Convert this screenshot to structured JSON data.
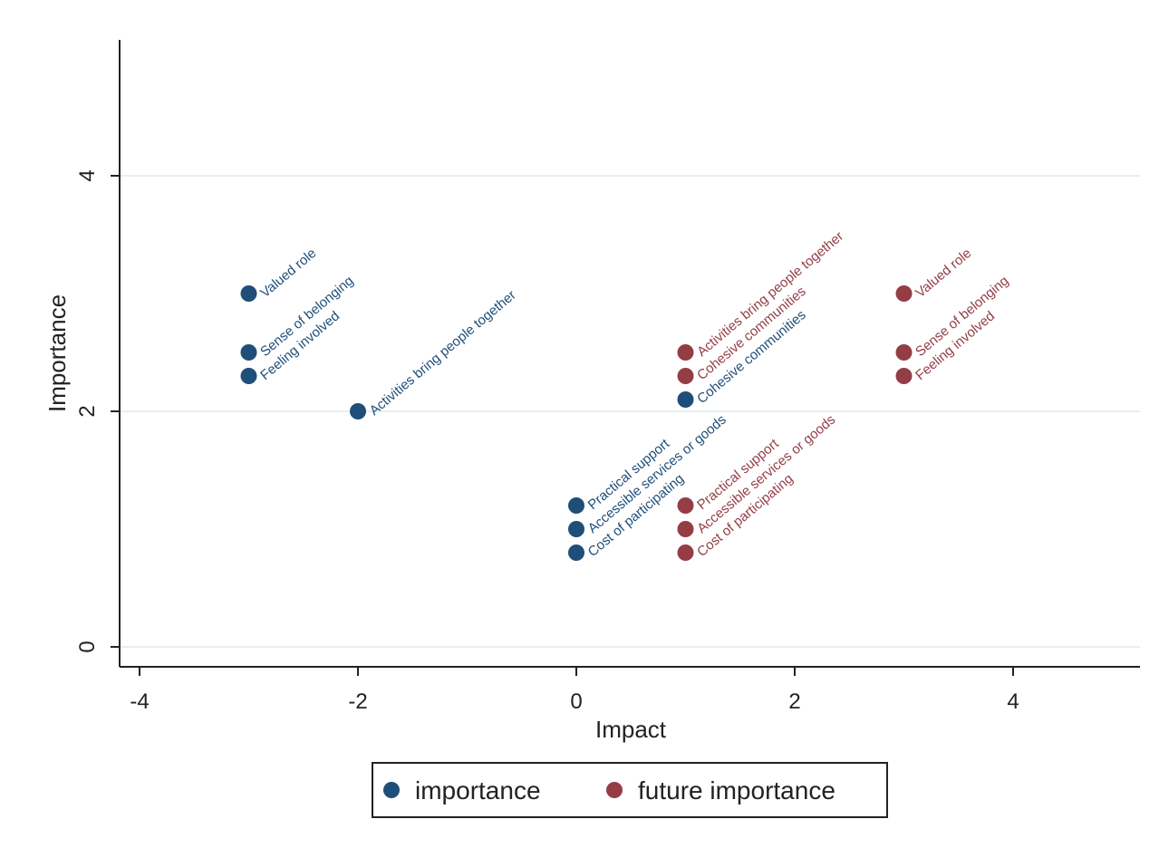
{
  "chart_data": {
    "type": "scatter",
    "xlabel": "Impact",
    "ylabel": "Importance",
    "xlim": [
      -4.1,
      5.2
    ],
    "ylim": [
      -0.2,
      5.2
    ],
    "xticks": [
      -4,
      -2,
      0,
      2,
      4
    ],
    "yticks": [
      0,
      2,
      4
    ],
    "grid": true,
    "legend_position": "bottom",
    "series": [
      {
        "name": "importance",
        "color": "#1f4e79",
        "points": [
          {
            "x": -3,
            "y": 3.0,
            "label": "Valued role"
          },
          {
            "x": -3,
            "y": 2.5,
            "label": "Sense of belonging"
          },
          {
            "x": -3,
            "y": 2.3,
            "label": "Feeling involved"
          },
          {
            "x": -2,
            "y": 2.0,
            "label": "Activities bring people together"
          },
          {
            "x": 1,
            "y": 2.1,
            "label": "Cohesive communities"
          },
          {
            "x": 0,
            "y": 1.2,
            "label": "Practical support"
          },
          {
            "x": 0,
            "y": 1.0,
            "label": "Accessible services or goods"
          },
          {
            "x": 0,
            "y": 0.8,
            "label": "Cost of participating"
          }
        ]
      },
      {
        "name": "future importance",
        "color": "#943d45",
        "points": [
          {
            "x": 3,
            "y": 3.0,
            "label": "Valued role"
          },
          {
            "x": 3,
            "y": 2.5,
            "label": "Sense of belonging"
          },
          {
            "x": 3,
            "y": 2.3,
            "label": "Feeling involved"
          },
          {
            "x": 1,
            "y": 2.5,
            "label": "Activities bring people together"
          },
          {
            "x": 1,
            "y": 2.3,
            "label": "Cohesive communities"
          },
          {
            "x": 1,
            "y": 1.2,
            "label": "Practical support"
          },
          {
            "x": 1,
            "y": 1.0,
            "label": "Accessible services or goods"
          },
          {
            "x": 1,
            "y": 0.8,
            "label": "Cost of participating"
          }
        ]
      }
    ]
  }
}
